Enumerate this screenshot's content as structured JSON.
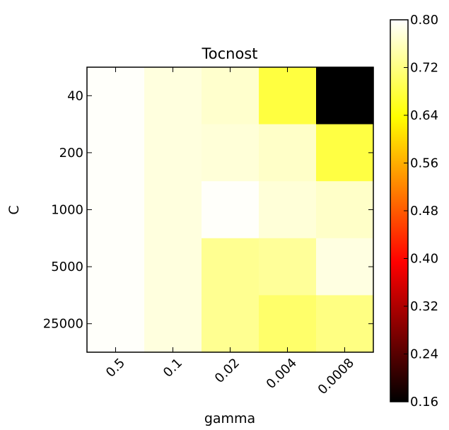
{
  "chart_data": {
    "type": "heatmap",
    "title": "Tocnost",
    "xlabel": "gamma",
    "ylabel": "C",
    "x_categories": [
      "0.5",
      "0.1",
      "0.02",
      "0.004",
      "0.0008"
    ],
    "y_categories": [
      "40",
      "200",
      "1000",
      "5000",
      "25000"
    ],
    "values": [
      [
        0.797,
        0.779,
        0.768,
        0.678,
        0.16
      ],
      [
        0.797,
        0.779,
        0.775,
        0.765,
        0.68
      ],
      [
        0.797,
        0.779,
        0.797,
        0.775,
        0.765
      ],
      [
        0.797,
        0.779,
        0.73,
        0.735,
        0.781
      ],
      [
        0.797,
        0.779,
        0.73,
        0.705,
        0.72
      ]
    ],
    "colormap": "hot",
    "colorbar": {
      "range": [
        0.16,
        0.8
      ],
      "ticks": [
        "0.16",
        "0.24",
        "0.32",
        "0.40",
        "0.48",
        "0.56",
        "0.64",
        "0.72",
        "0.80"
      ]
    },
    "grid": false,
    "legend": "none"
  }
}
